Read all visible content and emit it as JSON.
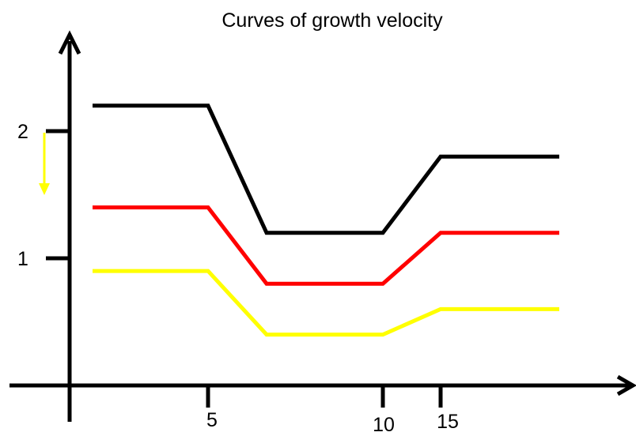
{
  "colors": {
    "black": "#000000",
    "red": "#ff0000",
    "yellow": "#ffff00"
  },
  "chart_data": {
    "type": "line",
    "title": "Curves of growth velocity",
    "xlabel": "",
    "ylabel": "",
    "x_ticks": [
      {
        "label": "5"
      },
      {
        "label": "10"
      },
      {
        "label": "15"
      }
    ],
    "y_ticks": [
      {
        "label": "1",
        "value": 1
      },
      {
        "label": "2",
        "value": 2
      }
    ],
    "ylim": [
      0,
      2.5
    ],
    "grid": false,
    "legend": "none",
    "series": [
      {
        "color": "#000000",
        "points": [
          [
            0,
            2.2
          ],
          [
            5,
            2.2
          ],
          [
            7,
            1.2
          ],
          [
            11,
            1.2
          ],
          [
            13,
            1.8
          ],
          [
            17,
            1.8
          ]
        ]
      },
      {
        "color": "#ff0000",
        "points": [
          [
            0,
            1.4
          ],
          [
            5,
            1.4
          ],
          [
            7,
            0.8
          ],
          [
            11,
            0.8
          ],
          [
            13,
            1.2
          ],
          [
            17,
            1.2
          ]
        ]
      },
      {
        "color": "#ffff00",
        "points": [
          [
            0,
            0.9
          ],
          [
            5,
            0.9
          ],
          [
            7,
            0.4
          ],
          [
            11,
            0.4
          ],
          [
            13,
            0.6
          ],
          [
            17,
            0.6
          ]
        ]
      }
    ],
    "annotations": [
      {
        "type": "arrow",
        "direction": "down",
        "color": "#ffff00",
        "near": "y-tick 2"
      }
    ]
  }
}
